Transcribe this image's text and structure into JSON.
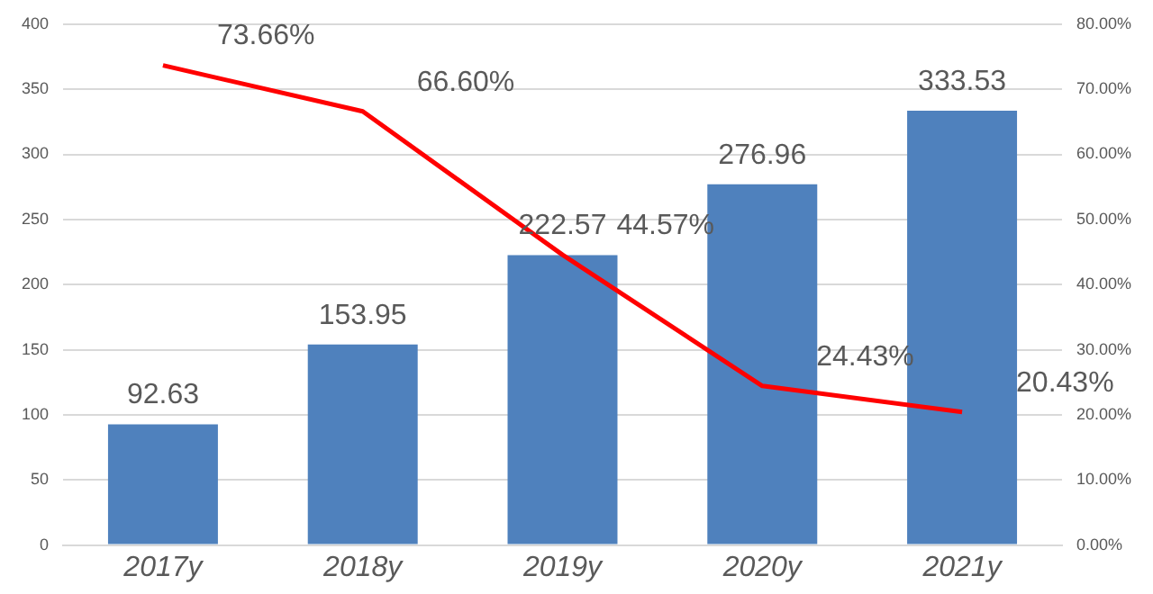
{
  "chart_data": {
    "type": "bar",
    "categories": [
      "2017y",
      "2018y",
      "2019y",
      "2020y",
      "2021y"
    ],
    "series": [
      {
        "color": "#4f81bd",
        "values": [
          92.63,
          153.95,
          222.57,
          276.96,
          333.53
        ],
        "value_labels": [
          "92.63",
          "153.95",
          "222.57",
          "276.96",
          "333.53"
        ]
      },
      {
        "type": "line",
        "axis": "y2",
        "color": "#ff0000",
        "values": [
          73.66,
          66.6,
          44.57,
          24.43,
          20.43
        ],
        "value_labels": [
          "73.66%",
          "66.60%",
          "44.57%",
          "24.43%",
          "20.43%"
        ]
      }
    ],
    "ylim": [
      0,
      400
    ],
    "yticks": [
      0,
      50,
      100,
      150,
      200,
      250,
      300,
      350,
      400
    ],
    "y2lim": [
      0,
      80
    ],
    "y2ticks": [
      {
        "value": 0,
        "label": "0.00%"
      },
      {
        "value": 10,
        "label": "10.00%"
      },
      {
        "value": 20,
        "label": "20.00%"
      },
      {
        "value": 30,
        "label": "30.00%"
      },
      {
        "value": 40,
        "label": "40.00%"
      },
      {
        "value": 50,
        "label": "50.00%"
      },
      {
        "value": 60,
        "label": "60.00%"
      },
      {
        "value": 70,
        "label": "70.00%"
      },
      {
        "value": 80,
        "label": "80.00%"
      }
    ],
    "grid": "y",
    "legend": false,
    "marker": "none"
  }
}
